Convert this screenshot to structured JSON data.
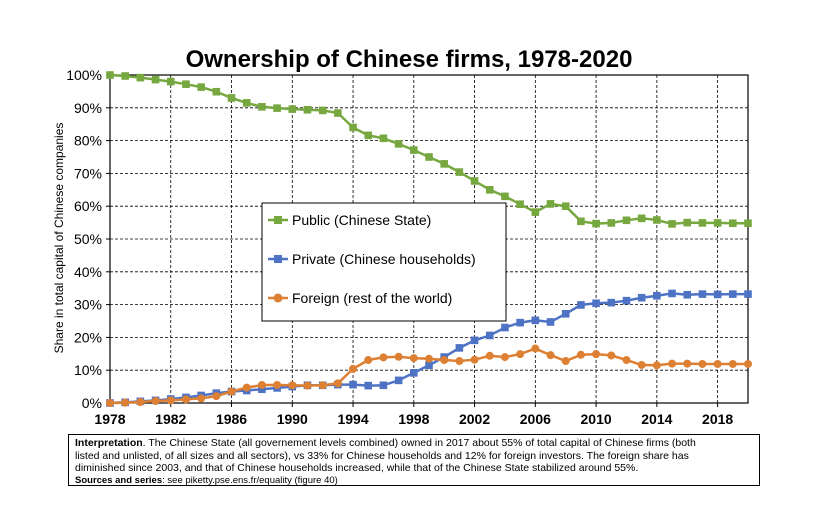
{
  "chart_data": {
    "type": "line",
    "title": "Ownership of Chinese firms, 1978-2020",
    "ylabel": "Share in total capital of Chinese companies",
    "xlabel": "",
    "xlim": [
      1978,
      2020
    ],
    "ylim": [
      0,
      100
    ],
    "x_ticks": [
      1978,
      1982,
      1986,
      1990,
      1994,
      1998,
      2002,
      2006,
      2010,
      2014,
      2018
    ],
    "x_tick_labels": [
      "1978",
      "1982",
      "1986",
      "1990",
      "1994",
      "1998",
      "2002",
      "2006",
      "2010",
      "2014",
      "2018"
    ],
    "y_ticks": [
      0,
      10,
      20,
      30,
      40,
      50,
      60,
      70,
      80,
      90,
      100
    ],
    "y_tick_labels": [
      "0%",
      "10%",
      "20%",
      "30%",
      "40%",
      "50%",
      "60%",
      "70%",
      "80%",
      "90%",
      "100%"
    ],
    "grid": true,
    "legend_position": "center",
    "x": [
      1978,
      1979,
      1980,
      1981,
      1982,
      1983,
      1984,
      1985,
      1986,
      1987,
      1988,
      1989,
      1990,
      1991,
      1992,
      1993,
      1994,
      1995,
      1996,
      1997,
      1998,
      1999,
      2000,
      2001,
      2002,
      2003,
      2004,
      2005,
      2006,
      2007,
      2008,
      2009,
      2010,
      2011,
      2012,
      2013,
      2014,
      2015,
      2016,
      2017,
      2018,
      2019,
      2020
    ],
    "series": [
      {
        "name": "Public (Chinese State)",
        "color": "#77a840",
        "marker": "square",
        "values": [
          100,
          99.7,
          99.2,
          98.6,
          98.0,
          97.2,
          96.3,
          94.9,
          93.0,
          91.5,
          90.3,
          89.9,
          89.6,
          89.4,
          89.2,
          88.4,
          84.0,
          81.6,
          80.7,
          79.0,
          77.1,
          75.0,
          72.9,
          70.4,
          67.7,
          65.0,
          63.0,
          60.6,
          58.2,
          60.7,
          60.0,
          55.4,
          54.7,
          54.9,
          55.7,
          56.3,
          55.8,
          54.6,
          55.0,
          54.9,
          54.9,
          54.8,
          54.8
        ]
      },
      {
        "name": "Private (Chinese households)",
        "color": "#4f73c4",
        "marker": "square",
        "values": [
          0,
          0.2,
          0.5,
          0.8,
          1.2,
          1.7,
          2.3,
          3.0,
          3.5,
          3.8,
          4.2,
          4.6,
          5.0,
          5.4,
          5.4,
          5.6,
          5.6,
          5.3,
          5.4,
          6.9,
          9.2,
          11.5,
          14.0,
          16.8,
          19.1,
          20.6,
          23.0,
          24.5,
          25.2,
          24.7,
          27.2,
          29.9,
          30.4,
          30.6,
          31.2,
          32.1,
          32.7,
          33.4,
          33.0,
          33.2,
          33.1,
          33.2,
          33.2
        ]
      },
      {
        "name": "Foreign (rest of the world)",
        "color": "#dd8033",
        "marker": "circle",
        "values": [
          0,
          0.1,
          0.3,
          0.6,
          0.8,
          1.1,
          1.4,
          2.1,
          3.5,
          4.7,
          5.5,
          5.5,
          5.4,
          5.3,
          5.4,
          6.0,
          10.4,
          13.1,
          13.9,
          14.1,
          13.7,
          13.5,
          13.1,
          12.8,
          13.2,
          14.4,
          14.0,
          14.9,
          16.6,
          14.6,
          12.8,
          14.7,
          14.9,
          14.5,
          13.1,
          11.6,
          11.5,
          12.0,
          12.0,
          11.9,
          11.9,
          11.9,
          11.9
        ]
      }
    ]
  },
  "note": {
    "interpretation_label": "Interpretation",
    "interpretation_line1": ". The Chinese State (all governement levels combined) owned in 2017 about 55% of total capital of Chinese firms (both",
    "interpretation_line2": "listed and unlisted, of all sizes and all sectors), vs 33% for Chinese households and 12% for foreign investors. The foreign share has",
    "interpretation_line3": "diminished since 2003, and that of Chinese households increased, while that of the Chinese State stabilized around 55%.",
    "sources_label": "Sources and series",
    "sources_text": ": see piketty.pse.ens.fr/equality (figure 40)"
  }
}
